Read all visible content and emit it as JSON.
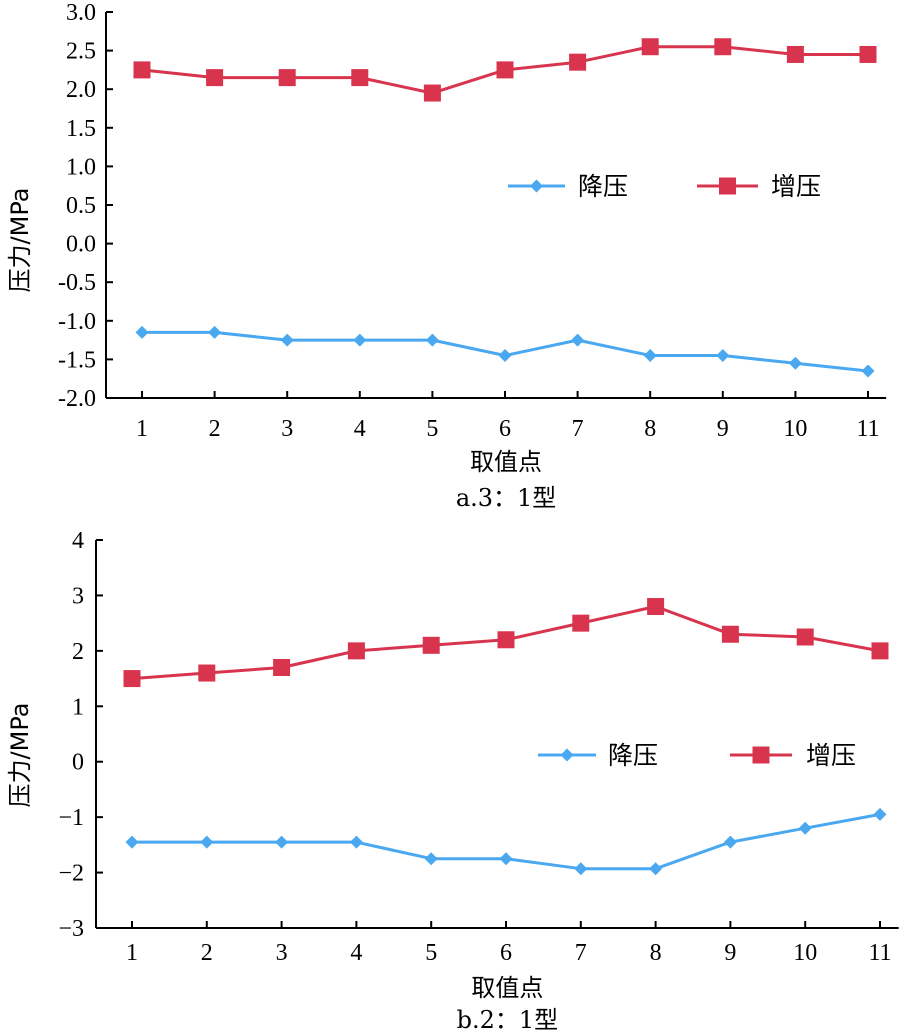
{
  "chart_data": [
    {
      "type": "line",
      "x": [
        1,
        2,
        3,
        4,
        5,
        6,
        7,
        8,
        9,
        10,
        11
      ],
      "xticks": [
        "1",
        "2",
        "3",
        "4",
        "5",
        "6",
        "7",
        "8",
        "9",
        "10",
        "11"
      ],
      "yticks": [
        "3.0",
        "2.5",
        "2.0",
        "1.5",
        "1.0",
        "0.5",
        "0.0",
        "-0.5",
        "-1.0",
        "-1.5",
        "-2.0"
      ],
      "ylim": [
        -2.0,
        3.0
      ],
      "xlabel": "取值点",
      "ylabel": "压力/MPa",
      "caption": "a.3：1型",
      "legend_position": "middle-right",
      "series": [
        {
          "name": "降压",
          "marker": "diamond",
          "color": "#4aa8f0",
          "values": [
            -1.15,
            -1.15,
            -1.25,
            -1.25,
            -1.25,
            -1.45,
            -1.25,
            -1.45,
            -1.45,
            -1.55,
            -1.65
          ]
        },
        {
          "name": "增压",
          "marker": "square",
          "color": "#d8344e",
          "values": [
            2.25,
            2.15,
            2.15,
            2.15,
            1.95,
            2.25,
            2.35,
            2.55,
            2.55,
            2.45,
            2.45
          ]
        }
      ]
    },
    {
      "type": "line",
      "x": [
        1,
        2,
        3,
        4,
        5,
        6,
        7,
        8,
        9,
        10,
        11
      ],
      "xticks": [
        "1",
        "2",
        "3",
        "4",
        "5",
        "6",
        "7",
        "8",
        "9",
        "10",
        "11"
      ],
      "yticks": [
        "4",
        "3",
        "2",
        "1",
        "0",
        "−1",
        "−2",
        "−3"
      ],
      "ylim": [
        -3,
        4
      ],
      "xlabel": "取值点",
      "ylabel": "压力/MPa",
      "caption": "b.2：1型",
      "legend_position": "middle-right",
      "series": [
        {
          "name": "降压",
          "marker": "diamond",
          "color": "#4aa8f0",
          "values": [
            -1.45,
            -1.45,
            -1.45,
            -1.45,
            -1.75,
            -1.75,
            -1.93,
            -1.93,
            -1.45,
            -1.2,
            -0.95
          ]
        },
        {
          "name": "增压",
          "marker": "square",
          "color": "#d8344e",
          "values": [
            1.5,
            1.6,
            1.7,
            2.0,
            2.1,
            2.2,
            2.5,
            2.8,
            2.3,
            2.25,
            2.0
          ]
        }
      ]
    }
  ]
}
